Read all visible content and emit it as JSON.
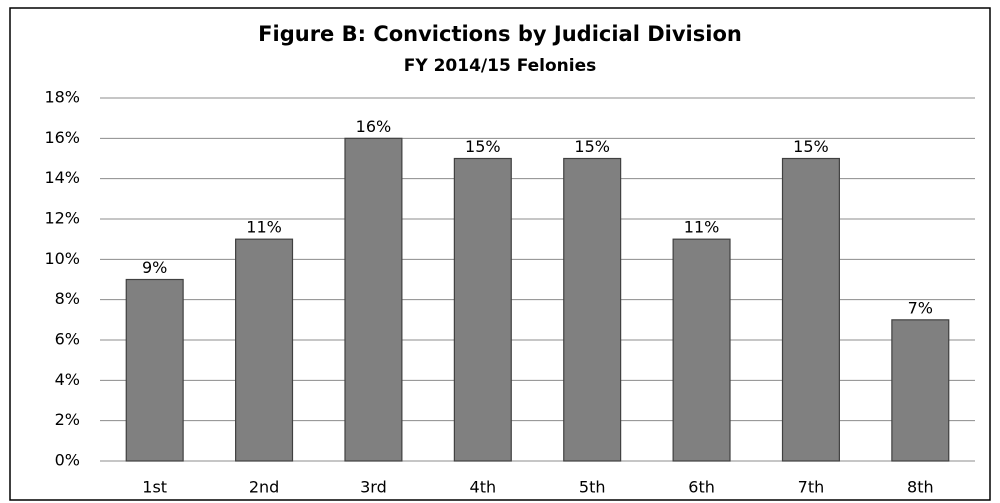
{
  "chart_data": {
    "type": "bar",
    "title": "Figure B: Convictions by Judicial Division",
    "subtitle": "FY 2014/15 Felonies",
    "categories": [
      "1st",
      "2nd",
      "3rd",
      "4th",
      "5th",
      "6th",
      "7th",
      "8th"
    ],
    "values": [
      9,
      11,
      16,
      15,
      15,
      11,
      15,
      7
    ],
    "value_labels": [
      "9%",
      "11%",
      "16%",
      "15%",
      "15%",
      "11%",
      "15%",
      "7%"
    ],
    "color": "#808080",
    "ylim": [
      0,
      18
    ],
    "yticks": [
      {
        "value": 0,
        "label": "0%"
      },
      {
        "value": 2,
        "label": "2%"
      },
      {
        "value": 4,
        "label": "4%"
      },
      {
        "value": 6,
        "label": "6%"
      },
      {
        "value": 8,
        "label": "8%"
      },
      {
        "value": 10,
        "label": "10%"
      },
      {
        "value": 12,
        "label": "12%"
      },
      {
        "value": 14,
        "label": "14%"
      },
      {
        "value": 16,
        "label": "16%"
      },
      {
        "value": 18,
        "label": "18%"
      }
    ],
    "grid": true
  }
}
